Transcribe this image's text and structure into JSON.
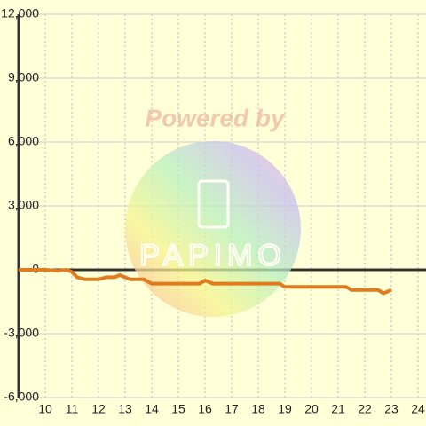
{
  "chart_data": {
    "type": "line",
    "watermark": {
      "text": "Powered by",
      "logo": "PAPIMO"
    },
    "x": [
      9,
      10,
      10.5,
      10.8,
      11,
      11.2,
      11.5,
      12,
      12.3,
      12.6,
      12.8,
      13.2,
      13.7,
      14,
      14.5,
      15.5,
      15.8,
      16,
      16.3,
      17,
      18,
      18.8,
      19,
      20,
      21,
      21.3,
      21.5,
      22,
      22.5,
      22.7,
      23
    ],
    "series": [
      {
        "color": "#e07b20",
        "values": [
          0,
          0,
          -50,
          0,
          -100,
          -350,
          -450,
          -450,
          -350,
          -350,
          -250,
          -450,
          -450,
          -650,
          -650,
          -650,
          -650,
          -500,
          -650,
          -650,
          -650,
          -650,
          -800,
          -800,
          -800,
          -800,
          -950,
          -950,
          -950,
          -1100,
          -950
        ]
      }
    ],
    "xlim": [
      9,
      24.3
    ],
    "xticks": [
      10,
      11,
      12,
      13,
      14,
      15,
      16,
      17,
      18,
      19,
      20,
      21,
      22,
      23,
      24
    ],
    "ylim": [
      -6000,
      12000
    ],
    "yticks": [
      {
        "value": -6000,
        "label": "-6,000"
      },
      {
        "value": -3000,
        "label": "-3,000"
      },
      0,
      {
        "value": 3000,
        "label": "3,000"
      },
      {
        "value": 6000,
        "label": "6,000"
      },
      {
        "value": 9000,
        "label": "9,000"
      },
      {
        "value": 12000,
        "label": "12,000"
      }
    ],
    "grid": true
  }
}
